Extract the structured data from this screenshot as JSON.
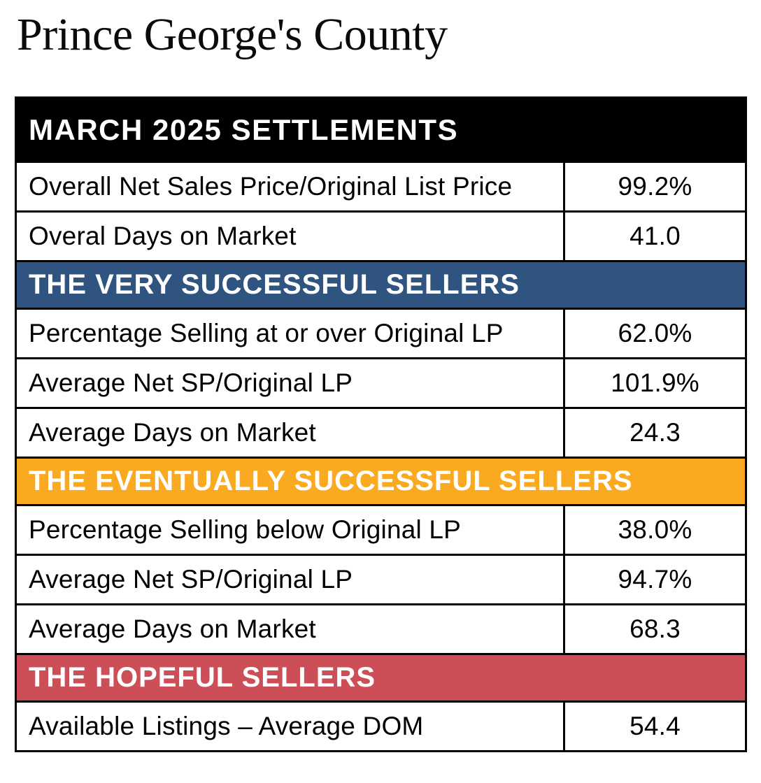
{
  "page_title": "Prince George's County",
  "colors": {
    "settlements_band": "#000000",
    "very_successful_band": "#2F5480",
    "eventually_successful_band": "#F9AA21",
    "hopeful_band": "#CC4F58",
    "band_text": "#FFFFFF",
    "body_text": "#000000",
    "border": "#000000",
    "background": "#FFFFFF"
  },
  "chart_data": {
    "type": "table",
    "title": "Prince George's County",
    "columns": [
      "Metric",
      "Value"
    ],
    "sections": [
      {
        "kind": "settlements",
        "heading": "MARCH 2025 SETTLEMENTS",
        "band_color": "#000000",
        "rows": [
          {
            "label": "Overall Net Sales Price/Original List Price",
            "value": "99.2%"
          },
          {
            "label": "Overal Days on Market",
            "value": "41.0"
          }
        ]
      },
      {
        "kind": "very-successful-sellers",
        "heading": "THE VERY SUCCESSFUL SELLERS",
        "band_color": "#2F5480",
        "rows": [
          {
            "label": "Percentage Selling at or over Original LP",
            "value": "62.0%"
          },
          {
            "label": "Average Net SP/Original LP",
            "value": "101.9%"
          },
          {
            "label": "Average Days on Market",
            "value": "24.3"
          }
        ]
      },
      {
        "kind": "eventually-successful-sellers",
        "heading": "THE EVENTUALLY SUCCESSFUL SELLERS",
        "band_color": "#F9AA21",
        "rows": [
          {
            "label": "Percentage Selling below Original LP",
            "value": "38.0%"
          },
          {
            "label": "Average Net SP/Original LP",
            "value": "94.7%"
          },
          {
            "label": "Average Days on Market",
            "value": "68.3"
          }
        ]
      },
      {
        "kind": "hopeful-sellers",
        "heading": "THE HOPEFUL SELLERS",
        "band_color": "#CC4F58",
        "rows": [
          {
            "label": "Available Listings – Average DOM",
            "value": "54.4"
          }
        ]
      }
    ]
  }
}
